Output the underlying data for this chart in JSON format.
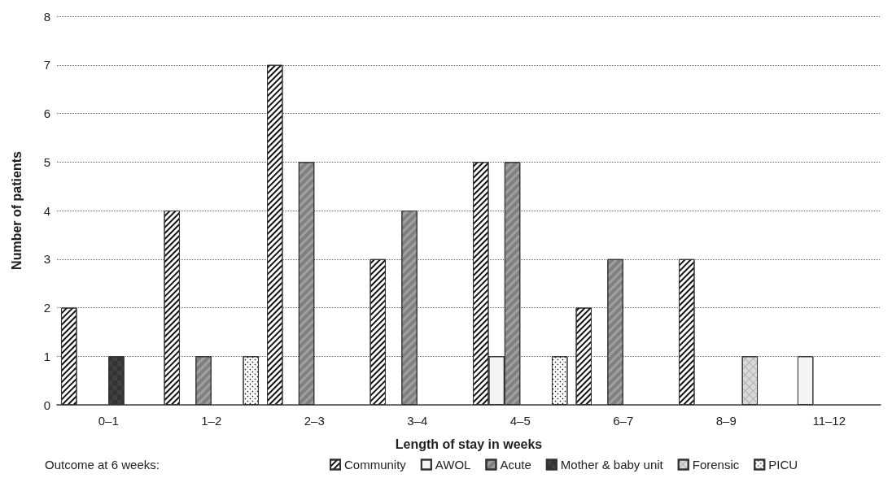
{
  "chart_data": {
    "type": "bar",
    "xlabel": "Length of stay in weeks",
    "ylabel": "Number of patients",
    "legend_title": "Outcome at 6 weeks:",
    "categories": [
      "0–1",
      "1–2",
      "2–3",
      "3–4",
      "4–5",
      "6–7",
      "8–9",
      "11–12"
    ],
    "series": [
      {
        "name": "Community",
        "color": "#ffffff",
        "values": [
          2,
          4,
          7,
          3,
          5,
          2,
          3,
          null
        ]
      },
      {
        "name": "AWOL",
        "color": "#f4f4f4",
        "values": [
          null,
          null,
          null,
          null,
          1,
          null,
          null,
          1
        ]
      },
      {
        "name": "Acute",
        "color": "#a0a0a2",
        "values": [
          null,
          1,
          5,
          4,
          5,
          3,
          null,
          null
        ]
      },
      {
        "name": "Mother & baby unit",
        "color": "#404040",
        "values": [
          1,
          null,
          null,
          null,
          null,
          null,
          null,
          null
        ]
      },
      {
        "name": "Forensic",
        "color": "#d9d9d9",
        "values": [
          null,
          null,
          null,
          null,
          null,
          null,
          1,
          null
        ]
      },
      {
        "name": "PICU",
        "color": "#fbfbfb",
        "values": [
          null,
          1,
          null,
          null,
          1,
          null,
          null,
          null
        ]
      }
    ],
    "ylim": [
      0,
      8
    ],
    "yticks": [
      0,
      1,
      2,
      3,
      4,
      5,
      6,
      7,
      8
    ],
    "grid": "y",
    "legend": "bottom"
  }
}
